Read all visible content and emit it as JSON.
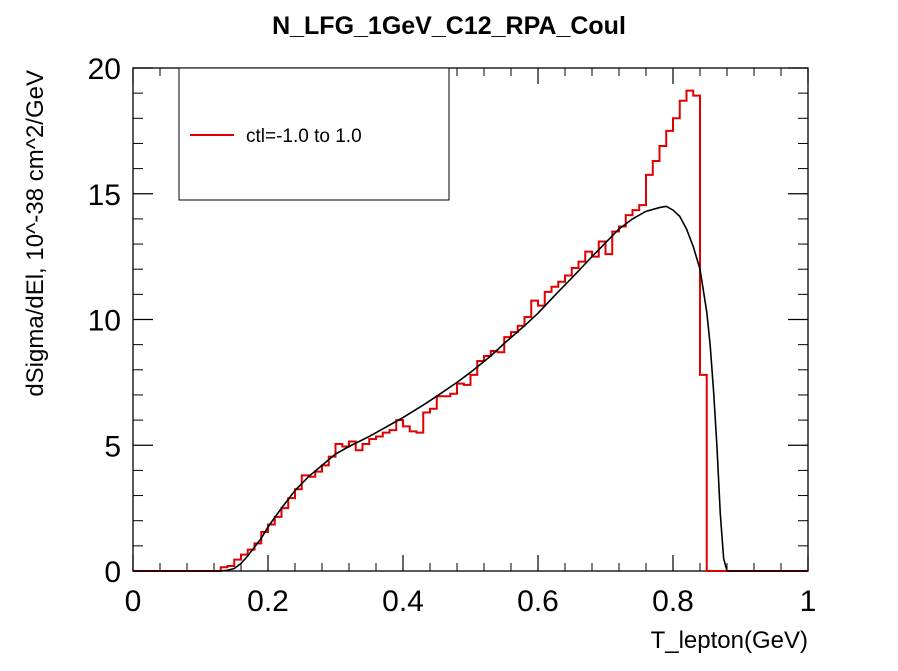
{
  "chart_data": {
    "type": "line",
    "title": "N_LFG_1GeV_C12_RPA_Coul",
    "xlabel": "T_lepton(GeV)",
    "ylabel": "dSigma/dEl, 10^-38 cm^2/GeV",
    "xlim": [
      0,
      1
    ],
    "ylim": [
      0,
      20
    ],
    "x_ticks": [
      0,
      0.2,
      0.4,
      0.6,
      0.8,
      1
    ],
    "x_tick_labels": [
      "0",
      "0.2",
      "0.4",
      "0.6",
      "0.8",
      "1"
    ],
    "y_ticks": [
      0,
      5,
      10,
      15,
      20
    ],
    "y_tick_labels": [
      "0",
      "5",
      "10",
      "15",
      "20"
    ],
    "grid": false,
    "legend_position": "top-left",
    "series": [
      {
        "name": "ctl=-1.0 to 1.0",
        "style": "histogram",
        "color": "#e00000",
        "bin_edges": [
          0.0,
          0.01,
          0.02,
          0.03,
          0.04,
          0.05,
          0.06,
          0.07,
          0.08,
          0.09,
          0.1,
          0.11,
          0.12,
          0.13,
          0.14,
          0.15,
          0.16,
          0.17,
          0.18,
          0.19,
          0.2,
          0.21,
          0.22,
          0.23,
          0.24,
          0.25,
          0.26,
          0.27,
          0.28,
          0.29,
          0.3,
          0.31,
          0.32,
          0.33,
          0.34,
          0.35,
          0.36,
          0.37,
          0.38,
          0.39,
          0.4,
          0.41,
          0.42,
          0.43,
          0.44,
          0.45,
          0.46,
          0.47,
          0.48,
          0.49,
          0.5,
          0.51,
          0.52,
          0.53,
          0.54,
          0.55,
          0.56,
          0.57,
          0.58,
          0.59,
          0.6,
          0.61,
          0.62,
          0.63,
          0.64,
          0.65,
          0.66,
          0.67,
          0.68,
          0.69,
          0.7,
          0.71,
          0.72,
          0.73,
          0.74,
          0.75,
          0.76,
          0.77,
          0.78,
          0.79,
          0.8,
          0.81,
          0.82,
          0.83,
          0.84,
          0.85,
          0.86,
          0.87,
          0.88,
          0.89,
          0.9,
          0.91,
          0.92,
          0.93,
          0.94,
          0.95,
          0.96,
          0.97,
          0.98,
          0.99,
          1.0
        ],
        "values": [
          0,
          0,
          0,
          0,
          0,
          0,
          0,
          0,
          0,
          0,
          0,
          0,
          0,
          0.15,
          0.2,
          0.45,
          0.65,
          0.85,
          1.1,
          1.55,
          1.85,
          2.15,
          2.5,
          2.9,
          3.25,
          3.8,
          3.75,
          3.95,
          4.2,
          4.55,
          5.05,
          4.95,
          5.15,
          4.8,
          5.05,
          5.25,
          5.35,
          5.5,
          5.6,
          6.0,
          5.75,
          5.55,
          5.5,
          6.3,
          6.45,
          6.95,
          6.95,
          7.05,
          7.45,
          7.4,
          7.8,
          8.35,
          8.55,
          8.75,
          8.7,
          9.3,
          9.5,
          9.75,
          10.1,
          10.75,
          10.55,
          11.1,
          11.3,
          11.5,
          11.75,
          12.05,
          12.3,
          12.7,
          12.5,
          13.1,
          12.6,
          13.5,
          13.7,
          14.15,
          14.35,
          14.55,
          15.75,
          16.3,
          16.9,
          17.5,
          18.0,
          18.7,
          19.1,
          18.9,
          7.8,
          0.0,
          0,
          0,
          0,
          0,
          0,
          0,
          0,
          0,
          0,
          0,
          0,
          0,
          0,
          0
        ]
      },
      {
        "name": "",
        "style": "line",
        "color": "#000000",
        "x": [
          0.0,
          0.13,
          0.14,
          0.15,
          0.16,
          0.17,
          0.18,
          0.19,
          0.2,
          0.22,
          0.24,
          0.26,
          0.28,
          0.3,
          0.32,
          0.35,
          0.38,
          0.4,
          0.43,
          0.45,
          0.48,
          0.5,
          0.53,
          0.55,
          0.58,
          0.6,
          0.63,
          0.65,
          0.68,
          0.7,
          0.72,
          0.74,
          0.76,
          0.78,
          0.79,
          0.8,
          0.81,
          0.82,
          0.83,
          0.84,
          0.85,
          0.855,
          0.86,
          0.865,
          0.87,
          0.875,
          0.88,
          1.0
        ],
        "y": [
          0,
          0,
          0.03,
          0.1,
          0.3,
          0.6,
          0.95,
          1.3,
          1.75,
          2.5,
          3.2,
          3.75,
          4.2,
          4.65,
          4.95,
          5.35,
          5.8,
          6.1,
          6.6,
          6.95,
          7.5,
          7.9,
          8.55,
          9.05,
          9.75,
          10.25,
          11.1,
          11.65,
          12.5,
          13.05,
          13.6,
          14.0,
          14.3,
          14.45,
          14.5,
          14.35,
          14.1,
          13.6,
          12.9,
          12.0,
          10.3,
          9.0,
          7.2,
          5.0,
          2.3,
          0.5,
          0,
          0
        ]
      }
    ]
  }
}
